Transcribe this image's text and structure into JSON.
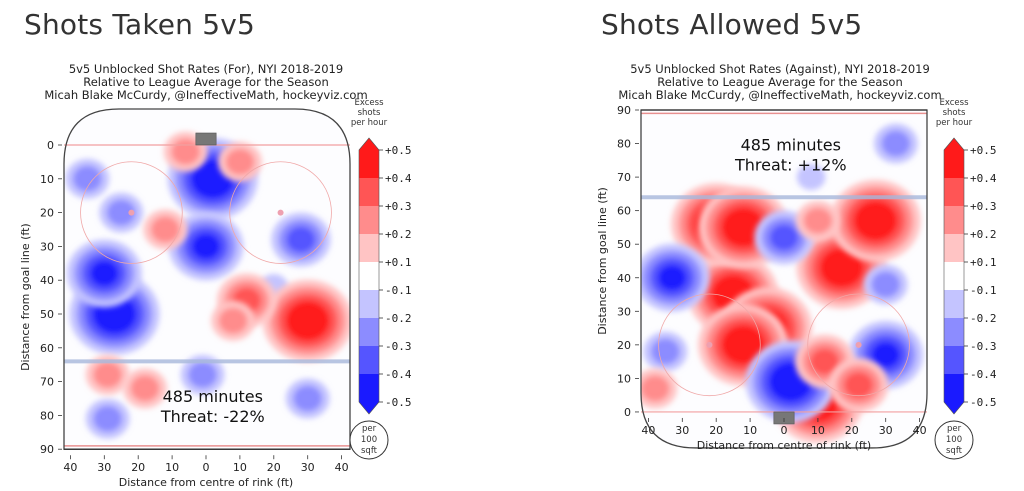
{
  "chart_data": [
    {
      "type": "heatmap",
      "panel_title": "Shots Taken 5v5",
      "title": "5v5 Unblocked Shot Rates (For), NYI 2018-2019",
      "subtitle": "Relative to League Average for the Season",
      "credit": "Micah Blake McCurdy, @IneffectiveMath, hockeyviz.com",
      "xlabel": "Distance from centre of rink (ft)",
      "ylabel": "Distance from goal line (ft)",
      "xticks": [
        "40",
        "30",
        "20",
        "10",
        "0",
        "10",
        "20",
        "30",
        "40"
      ],
      "yticks": [
        "0",
        "10",
        "20",
        "30",
        "40",
        "50",
        "60",
        "70",
        "80",
        "90"
      ],
      "xlim": [
        -42,
        42
      ],
      "ylim": [
        90,
        0
      ],
      "net_at": "top",
      "annotation": {
        "minutes": "485 minutes",
        "threat": "Threat: -22%"
      },
      "blobs": [
        {
          "x": 2,
          "y": 10,
          "value": -0.5
        },
        {
          "x": 0,
          "y": 30,
          "value": -0.4
        },
        {
          "x": -27,
          "y": 50,
          "value": -0.5
        },
        {
          "x": -30,
          "y": 38,
          "value": -0.4
        },
        {
          "x": -25,
          "y": 20,
          "value": -0.2
        },
        {
          "x": -35,
          "y": 10,
          "value": -0.2
        },
        {
          "x": 28,
          "y": 28,
          "value": -0.3
        },
        {
          "x": 20,
          "y": 42,
          "value": -0.1
        },
        {
          "x": 30,
          "y": 52,
          "value": 0.5
        },
        {
          "x": 12,
          "y": 46,
          "value": 0.3
        },
        {
          "x": 8,
          "y": 52,
          "value": 0.2
        },
        {
          "x": -12,
          "y": 25,
          "value": 0.2
        },
        {
          "x": 10,
          "y": 5,
          "value": 0.2
        },
        {
          "x": -6,
          "y": 2,
          "value": 0.2
        },
        {
          "x": -1,
          "y": 68,
          "value": -0.2
        },
        {
          "x": 30,
          "y": 75,
          "value": -0.2
        },
        {
          "x": -29,
          "y": 81,
          "value": -0.2
        },
        {
          "x": -29,
          "y": 68,
          "value": 0.2
        },
        {
          "x": -18,
          "y": 72,
          "value": 0.2
        }
      ]
    },
    {
      "type": "heatmap",
      "panel_title": "Shots Allowed 5v5",
      "title": "5v5 Unblocked Shot Rates (Against), NYI 2018-2019",
      "subtitle": "Relative to League Average for the Season",
      "credit": "Micah Blake McCurdy, @IneffectiveMath, hockeyviz.com",
      "xlabel": "Distance from centre of rink (ft)",
      "ylabel": "Distance from goal line (ft)",
      "xticks": [
        "40",
        "30",
        "20",
        "10",
        "0",
        "10",
        "20",
        "30",
        "40"
      ],
      "yticks": [
        "90",
        "80",
        "70",
        "60",
        "50",
        "40",
        "30",
        "20",
        "10",
        "0"
      ],
      "xlim": [
        -42,
        42
      ],
      "ylim": [
        0,
        90
      ],
      "net_at": "bottom",
      "annotation": {
        "minutes": "485 minutes",
        "threat": "Threat: +12%"
      },
      "blobs": [
        {
          "x": -15,
          "y": 35,
          "value": 0.5
        },
        {
          "x": -5,
          "y": 25,
          "value": 0.5
        },
        {
          "x": -12,
          "y": 20,
          "value": 0.5
        },
        {
          "x": -20,
          "y": 56,
          "value": 0.5
        },
        {
          "x": -12,
          "y": 55,
          "value": 0.5
        },
        {
          "x": 17,
          "y": 43,
          "value": 0.5
        },
        {
          "x": 27,
          "y": 57,
          "value": 0.5
        },
        {
          "x": 10,
          "y": 3,
          "value": 0.5
        },
        {
          "x": 2,
          "y": 9,
          "value": -0.5
        },
        {
          "x": -33,
          "y": 40,
          "value": -0.4
        },
        {
          "x": 0,
          "y": 52,
          "value": -0.3
        },
        {
          "x": 30,
          "y": 17,
          "value": -0.4
        },
        {
          "x": 30,
          "y": 38,
          "value": -0.2
        },
        {
          "x": 33,
          "y": 80,
          "value": -0.2
        },
        {
          "x": -35,
          "y": 18,
          "value": -0.2
        },
        {
          "x": 8,
          "y": 70,
          "value": -0.1
        },
        {
          "x": 12,
          "y": 15,
          "value": 0.3
        },
        {
          "x": 22,
          "y": 8,
          "value": 0.3
        },
        {
          "x": -38,
          "y": 7,
          "value": 0.2
        },
        {
          "x": 10,
          "y": 57,
          "value": 0.2
        }
      ]
    }
  ],
  "colorbar": {
    "title_lines": [
      "Excess",
      "shots",
      "per hour"
    ],
    "ticks": [
      "+0.5",
      "+0.4",
      "+0.3",
      "+0.2",
      "+0.1",
      "-0.1",
      "-0.2",
      "-0.3",
      "-0.4",
      "-0.5"
    ],
    "unit_lines": [
      "per",
      "100",
      "sqft"
    ],
    "colors": [
      "#ff1a1a",
      "#ff5555",
      "#ff8c8c",
      "#ffc4c4",
      "#ffffff",
      "#c4c4ff",
      "#8c8cff",
      "#5555ff",
      "#1a1aff"
    ]
  },
  "colors": {
    "red": "#ff1010",
    "blue": "#1010ff",
    "goal_line": "#f2a0a0",
    "blue_line": "#a8b8dc",
    "net": "#777777"
  }
}
